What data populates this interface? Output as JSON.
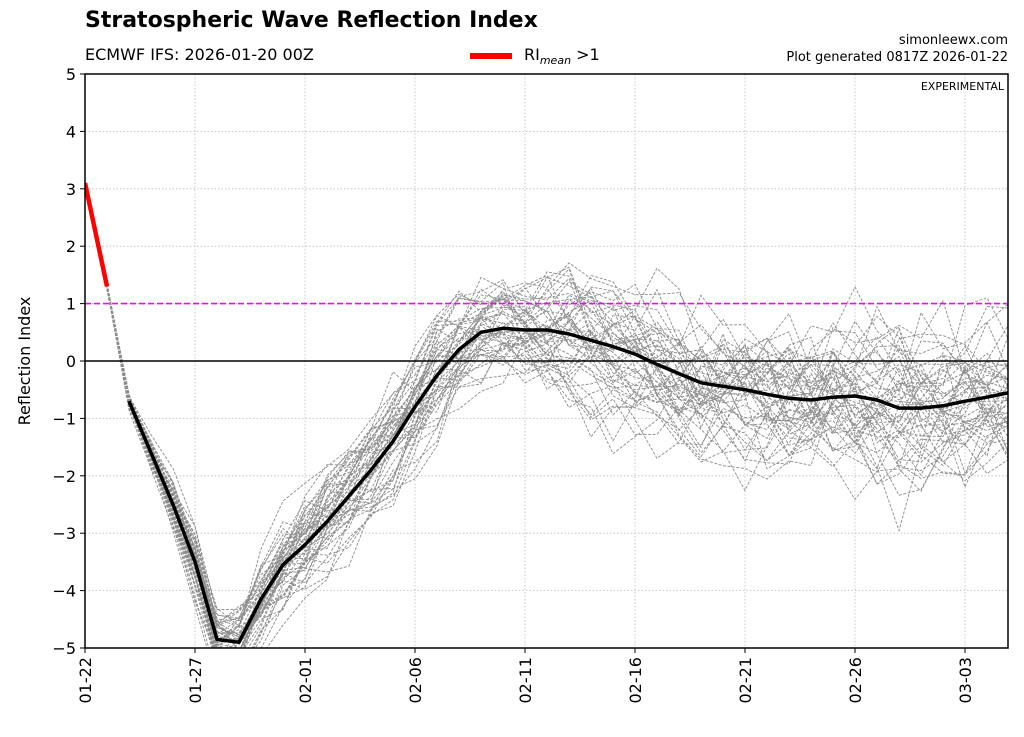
{
  "header": {
    "title": "Stratospheric Wave Reflection Index",
    "subtitle": "ECMWF IFS: 2026-01-20 00Z",
    "legend_label_main": "RI",
    "legend_label_sub": "mean",
    "legend_label_cond": " >1",
    "credit_site": "simonleewx.com",
    "credit_generated": "Plot generated 0817Z 2026-01-22",
    "watermark": "EXPERIMENTAL"
  },
  "colors": {
    "mean_line": "#000000",
    "mean_above_threshold": "#ff0000",
    "ensemble_members": "#8c8c8c",
    "threshold_line": "#ff00ff",
    "zero_line": "#000000",
    "grid": "#bbbbbb"
  },
  "chart_data": {
    "type": "line",
    "title": "Stratospheric Wave Reflection Index",
    "xlabel": "",
    "ylabel": "Reflection Index",
    "ylim": [
      -5,
      5
    ],
    "xlim": [
      "01-22",
      "03-05"
    ],
    "grid": true,
    "legend_placement": "top-center",
    "yticks": [
      "5",
      "4",
      "3",
      "2",
      "1",
      "0",
      "−1",
      "−2",
      "−3",
      "−4",
      "−5"
    ],
    "ytick_values": [
      5,
      4,
      3,
      2,
      1,
      0,
      -1,
      -2,
      -3,
      -4,
      -5
    ],
    "xticks": [
      "01-22",
      "01-27",
      "02-01",
      "02-06",
      "02-11",
      "02-16",
      "02-21",
      "02-26",
      "03-03"
    ],
    "xtick_day_offsets": [
      0,
      5,
      10,
      15,
      20,
      25,
      30,
      35,
      40
    ],
    "reference_lines": [
      {
        "name": "threshold",
        "y": 1,
        "style": "dashed"
      },
      {
        "name": "zero",
        "y": 0,
        "style": "solid"
      }
    ],
    "threshold": 1,
    "x_day_offsets": [
      0,
      1,
      2,
      3,
      4,
      5,
      6,
      7,
      8,
      9,
      10,
      11,
      12,
      13,
      14,
      15,
      16,
      17,
      18,
      19,
      20,
      21,
      22,
      23,
      24,
      25,
      26,
      27,
      28,
      29,
      30,
      31,
      32,
      33,
      34,
      35,
      36,
      37,
      38,
      39,
      40,
      41,
      42
    ],
    "series": [
      {
        "name": "RI_mean",
        "values": [
          3.1,
          1.3,
          -0.7,
          -1.6,
          -2.5,
          -3.5,
          -4.85,
          -4.9,
          -4.15,
          -3.55,
          -3.2,
          -2.8,
          -2.35,
          -1.9,
          -1.4,
          -0.8,
          -0.25,
          0.2,
          0.5,
          0.57,
          0.54,
          0.54,
          0.47,
          0.36,
          0.25,
          0.12,
          -0.06,
          -0.22,
          -0.38,
          -0.44,
          -0.5,
          -0.58,
          -0.65,
          -0.68,
          -0.63,
          -0.61,
          -0.68,
          -0.82,
          -0.82,
          -0.78,
          -0.7,
          -0.63,
          -0.55
        ]
      }
    ],
    "ensemble": {
      "name": "ensemble members",
      "member_count": 50,
      "spread_by_day": [
        0.0,
        0.05,
        0.12,
        0.2,
        0.3,
        0.35,
        0.35,
        0.4,
        0.45,
        0.45,
        0.45,
        0.5,
        0.5,
        0.5,
        0.5,
        0.5,
        0.5,
        0.5,
        0.5,
        0.5,
        0.55,
        0.6,
        0.6,
        0.65,
        0.65,
        0.7,
        0.7,
        0.7,
        0.7,
        0.7,
        0.7,
        0.75,
        0.75,
        0.8,
        0.8,
        0.8,
        0.8,
        0.8,
        0.8,
        0.75,
        0.75,
        0.75,
        0.75
      ]
    }
  }
}
